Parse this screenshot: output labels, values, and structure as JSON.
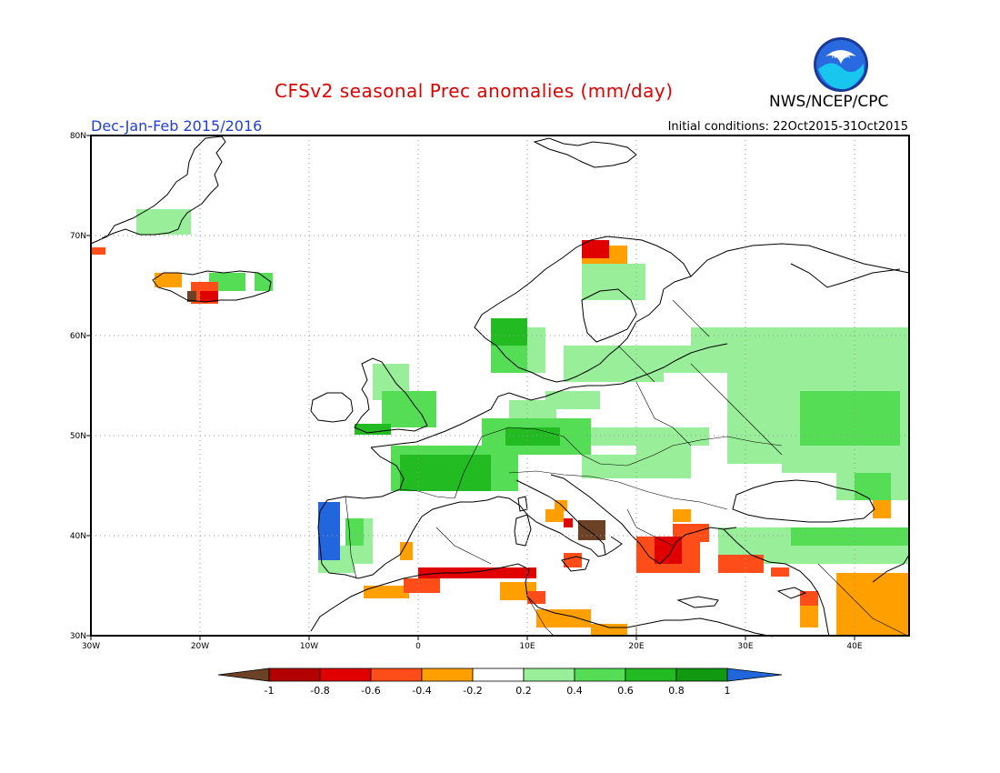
{
  "header": {
    "title": "CFSv2 seasonal Prec anomalies (mm/day)",
    "org": "NWS/NCEP/CPC",
    "subtitle": "Dec-Jan-Feb 2015/2016",
    "initial_conditions": "Initial conditions: 22Oct2015-31Oct2015",
    "logo_text": "NOAA"
  },
  "map": {
    "region": "Europe",
    "lon_range": [
      -30,
      45
    ],
    "lat_range": [
      30,
      80
    ],
    "lat_labels": [
      "80N",
      "70N",
      "60N",
      "50N",
      "40N",
      "30N"
    ],
    "lon_labels": [
      "30W",
      "20W",
      "10W",
      "0",
      "10E",
      "20E",
      "30E",
      "40E"
    ]
  },
  "colorbar": {
    "tick_labels": [
      "-1",
      "-0.8",
      "-0.6",
      "-0.4",
      "-0.2",
      "0.2",
      "0.4",
      "0.6",
      "0.8",
      "1"
    ],
    "colors": [
      "#6b4226",
      "#b30000",
      "#e00000",
      "#ff4d1a",
      "#ffa000",
      "#ffffff",
      "#99ee99",
      "#55dd55",
      "#22bb22",
      "#119911",
      "#2266dd"
    ]
  }
}
